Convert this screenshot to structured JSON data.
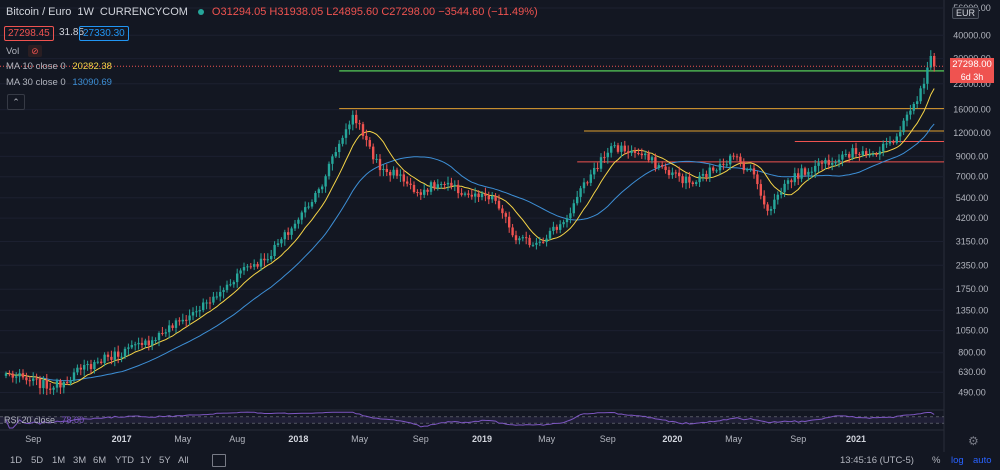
{
  "header": {
    "symbol": "Bitcoin / Euro",
    "interval": "1W",
    "exchange": "CURRENCYCOM",
    "ohlc": "O31294.05 H31938.05 L24895.60 C27298.00 −3544.60 (−11.49%)",
    "bid": "27298.45",
    "spread": "31.85",
    "ask": "27330.30",
    "market_status_color": "#26a69a"
  },
  "legend": {
    "vol_label": "Vol",
    "ma10_label": "MA 10 close 0",
    "ma10_value": "20282.38",
    "ma30_label": "MA 30 close 0",
    "ma30_value": "13090.69"
  },
  "rsi": {
    "label": "RSI 20 close",
    "value": "78.00"
  },
  "currency": "EUR",
  "last_price_label": "27298.00",
  "countdown": "6d 3h",
  "toolbar": {
    "timeframes": [
      "1D",
      "5D",
      "1M",
      "3M",
      "6M",
      "YTD",
      "1Y",
      "5Y",
      "All"
    ],
    "time": "13:45:16 (UTC-5)",
    "percent": "%",
    "log": "log",
    "auto": "auto"
  },
  "colors": {
    "background": "#131722",
    "up": "#26a69a",
    "down": "#ef5350",
    "ma10": "#f5d447",
    "ma30": "#3d8fd6",
    "rsi": "#7e57c2",
    "green_line": "#4caf50",
    "orange_line": "#e0a030",
    "red_line": "#ef5350"
  },
  "chart_data": {
    "type": "candlestick",
    "y_scale": "log",
    "ylim": [
      420,
      56000
    ],
    "y_ticks": [
      "56000.00",
      "40000.00",
      "30000.00",
      "22000.00",
      "16000.00",
      "12000.00",
      "9000.00",
      "7000.00",
      "5400.00",
      "4200.00",
      "3150.00",
      "2350.00",
      "1750.00",
      "1350.00",
      "1050.00",
      "800.00",
      "630.00",
      "490.00"
    ],
    "x_tick_labels": [
      "Sep",
      "2017",
      "May",
      "Aug",
      "2018",
      "May",
      "Sep",
      "2019",
      "May",
      "Sep",
      "2020",
      "May",
      "Sep",
      "2021"
    ],
    "anchors": [
      {
        "w": 0,
        "c": 620
      },
      {
        "w": 6,
        "c": 570
      },
      {
        "w": 14,
        "c": 520
      },
      {
        "w": 22,
        "c": 650
      },
      {
        "w": 30,
        "c": 760
      },
      {
        "w": 40,
        "c": 880
      },
      {
        "w": 52,
        "c": 1200
      },
      {
        "w": 62,
        "c": 1600
      },
      {
        "w": 70,
        "c": 2300
      },
      {
        "w": 76,
        "c": 2500
      },
      {
        "w": 84,
        "c": 3700
      },
      {
        "w": 92,
        "c": 6000
      },
      {
        "w": 98,
        "c": 10500
      },
      {
        "w": 102,
        "c": 15000
      },
      {
        "w": 106,
        "c": 11000
      },
      {
        "w": 110,
        "c": 7600
      },
      {
        "w": 116,
        "c": 7200
      },
      {
        "w": 120,
        "c": 5800
      },
      {
        "w": 128,
        "c": 6400
      },
      {
        "w": 136,
        "c": 5600
      },
      {
        "w": 144,
        "c": 5200
      },
      {
        "w": 150,
        "c": 3200
      },
      {
        "w": 156,
        "c": 3100
      },
      {
        "w": 164,
        "c": 4000
      },
      {
        "w": 172,
        "c": 7200
      },
      {
        "w": 178,
        "c": 10200
      },
      {
        "w": 186,
        "c": 9300
      },
      {
        "w": 194,
        "c": 7600
      },
      {
        "w": 202,
        "c": 6400
      },
      {
        "w": 210,
        "c": 8200
      },
      {
        "w": 214,
        "c": 9000
      },
      {
        "w": 220,
        "c": 7200
      },
      {
        "w": 224,
        "c": 4600
      },
      {
        "w": 230,
        "c": 6700
      },
      {
        "w": 238,
        "c": 8000
      },
      {
        "w": 246,
        "c": 9200
      },
      {
        "w": 252,
        "c": 9600
      },
      {
        "w": 256,
        "c": 9200
      },
      {
        "w": 262,
        "c": 11500
      },
      {
        "w": 266,
        "c": 15800
      },
      {
        "w": 270,
        "c": 22000
      },
      {
        "w": 272,
        "c": 31000
      },
      {
        "w": 273,
        "c": 27298
      }
    ],
    "levels": [
      {
        "price": 25800,
        "w_start": 98,
        "color": "#4caf50"
      },
      {
        "price": 16200,
        "w_start": 98,
        "color": "#e0a030"
      },
      {
        "price": 12300,
        "w_start": 170,
        "color": "#e0a030"
      },
      {
        "price": 10800,
        "w_start": 232,
        "color": "#ef5350"
      },
      {
        "price": 8400,
        "w_start": 168,
        "color": "#ef5350"
      }
    ],
    "ma_periods": [
      10,
      30
    ],
    "rsi_band": [
      30,
      70
    ]
  }
}
